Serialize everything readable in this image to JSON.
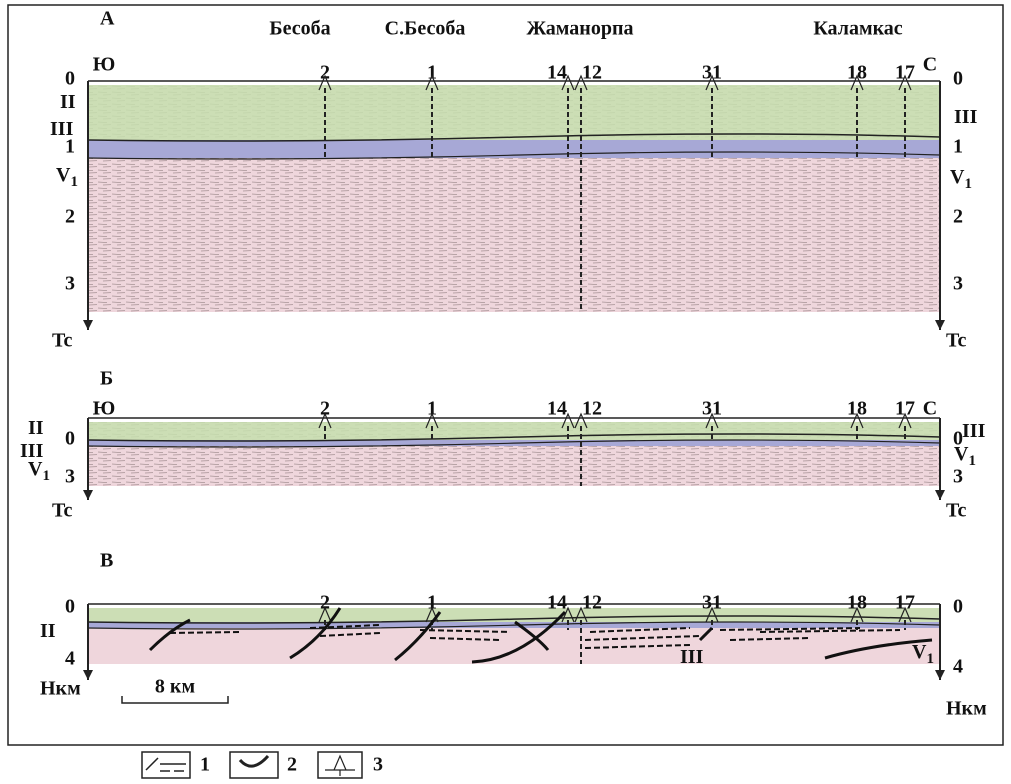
{
  "panels": [
    {
      "letter": "А",
      "fields": [
        "Бесоба",
        "С.Бесоба",
        "Жаманорпа",
        "Каламкас"
      ],
      "south": "Ю",
      "north": "С",
      "wells": [
        "2",
        "1",
        "14",
        "12",
        "31",
        "18",
        "17"
      ],
      "left_scale": [
        "0",
        "1",
        "2",
        "3"
      ],
      "right_scale": [
        "0",
        "1",
        "2",
        "3"
      ],
      "left_horizons": [
        {
          "main": "II"
        },
        {
          "main": "III"
        },
        {
          "main": "V",
          "sub": "1"
        }
      ],
      "right_horizons": [
        {
          "main": "III"
        },
        {
          "main": "V",
          "sub": "1"
        }
      ],
      "left_axis": "Tc",
      "right_axis": "Tc"
    },
    {
      "letter": "Б",
      "south": "Ю",
      "north": "С",
      "wells": [
        "2",
        "1",
        "14",
        "12",
        "31",
        "18",
        "17"
      ],
      "left_scale": [
        "0",
        "3"
      ],
      "right_scale": [
        "0",
        "3"
      ],
      "left_horizons": [
        {
          "main": "II"
        },
        {
          "main": "III"
        },
        {
          "main": "V",
          "sub": "1"
        }
      ],
      "right_horizons": [
        {
          "main": "III"
        },
        {
          "main": "V",
          "sub": "1"
        }
      ],
      "left_axis": "Tc",
      "right_axis": "Tc"
    },
    {
      "letter": "В",
      "wells": [
        "2",
        "1",
        "14",
        "12",
        "31",
        "18",
        "17"
      ],
      "left_scale": [
        "0",
        "4"
      ],
      "right_scale": [
        "0",
        "4"
      ],
      "left_horizons": [
        {
          "main": "II"
        }
      ],
      "inner_horizons": [
        {
          "main": "III"
        },
        {
          "main": "V",
          "sub": "1"
        }
      ],
      "left_axis": "Hкм",
      "right_axis": "Hкм",
      "scale_bar": "8 км"
    }
  ],
  "legend": [
    "1",
    "2",
    "3"
  ]
}
